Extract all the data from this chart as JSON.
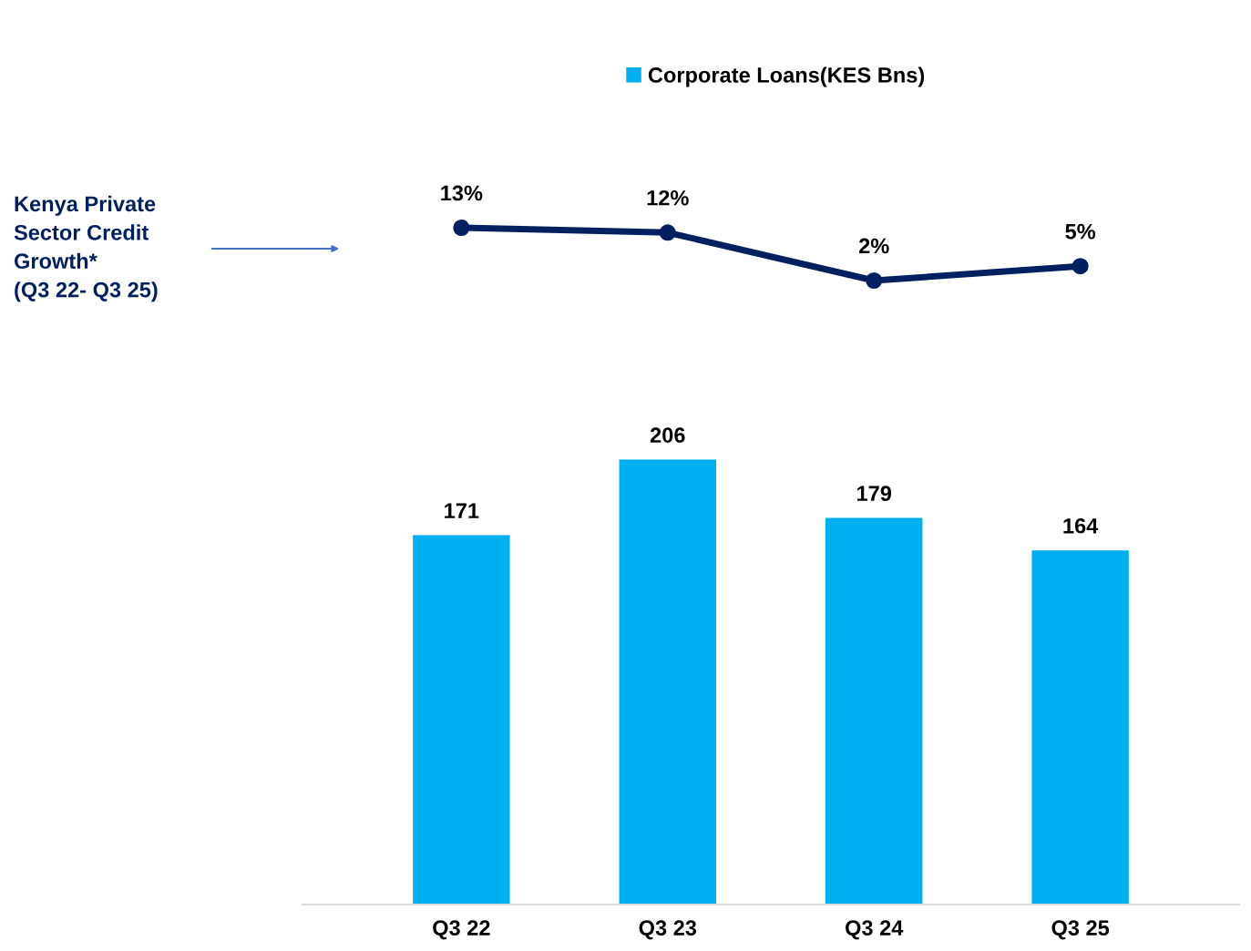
{
  "chart_data": [
    {
      "type": "line",
      "categories": [
        null,
        null,
        null,
        null
      ],
      "series": [
        {
          "name": "Kenya Private\nSector Credit\nGrowth*\n(Q3 22- Q3 25)",
          "color": "#002060",
          "values": [
            13,
            12,
            2,
            5
          ],
          "value_labels": [
            "13%",
            "12%",
            "2%",
            "5%"
          ]
        }
      ],
      "marker": "circle",
      "line_style": "solid",
      "tick_labels": false
    },
    {
      "type": "bar",
      "categories": [
        "Q3 22",
        "Q3 23",
        "Q3 24",
        "Q3 25"
      ],
      "series": [
        {
          "name": "Corporate Loans(KES Bns)",
          "color": "#00b0f0",
          "values": [
            171,
            206,
            179,
            164
          ]
        }
      ],
      "data_labels": true,
      "legend": "top",
      "tick_labels": "x"
    }
  ]
}
